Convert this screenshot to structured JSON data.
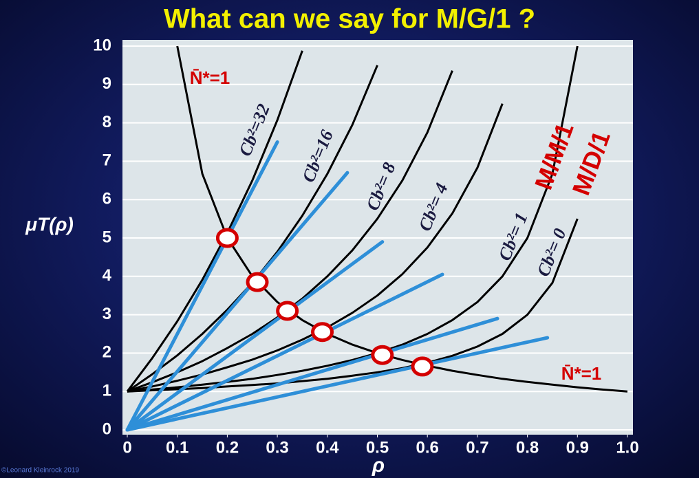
{
  "chart_data": {
    "type": "line",
    "title": "What can we say for M/G/1 ?",
    "x_label": "ρ",
    "y_label": "μT(ρ)",
    "credit": "©Leonard Kleinrock 2019",
    "xlim": [
      0,
      1
    ],
    "ylim": [
      0,
      10
    ],
    "xticks": [
      0,
      0.1,
      0.2,
      0.3,
      0.4,
      0.5,
      0.6,
      0.7,
      0.8,
      0.9,
      {
        "value": 1,
        "label": "1.0"
      }
    ],
    "yticks": [
      0,
      1,
      2,
      3,
      4,
      5,
      6,
      7,
      8,
      9,
      10
    ],
    "grid": true,
    "x": [
      0,
      0.05,
      0.1,
      0.15,
      0.2,
      0.25,
      0.3,
      0.35,
      0.4,
      0.45,
      0.5,
      0.55,
      0.6,
      0.65,
      0.7,
      0.75,
      0.8,
      0.85,
      0.9,
      0.95,
      1
    ],
    "series": [
      {
        "name": "Cb²=32",
        "color": "#000000",
        "values": [
          1,
          1.87,
          2.83,
          3.91,
          5.13,
          6.5,
          8.07,
          9.88,
          null,
          null,
          null,
          null,
          null,
          null,
          null,
          null,
          null,
          null,
          null,
          null,
          null
        ]
      },
      {
        "name": "Cb²=16",
        "color": "#000000",
        "values": [
          1,
          1.45,
          1.94,
          2.5,
          3.13,
          3.83,
          4.64,
          5.58,
          6.67,
          7.95,
          9.5,
          null,
          null,
          null,
          null,
          null,
          null,
          null,
          null,
          null,
          null
        ]
      },
      {
        "name": "Cb²= 8",
        "color": "#000000",
        "values": [
          1,
          1.24,
          1.5,
          1.79,
          2.13,
          2.5,
          2.93,
          3.42,
          4,
          4.68,
          5.5,
          6.5,
          7.75,
          9.36,
          null,
          null,
          null,
          null,
          null,
          null,
          null
        ]
      },
      {
        "name": "Cb²= 4",
        "color": "#000000",
        "values": [
          1,
          1.13,
          1.28,
          1.44,
          1.63,
          1.83,
          2.07,
          2.35,
          2.67,
          3.05,
          3.5,
          4.06,
          4.75,
          5.64,
          6.83,
          8.5,
          null,
          null,
          null,
          null,
          null
        ]
      },
      {
        "name": "Cb²= 1",
        "color": "#000000",
        "values": [
          1,
          1.05,
          1.11,
          1.18,
          1.25,
          1.33,
          1.43,
          1.54,
          1.67,
          1.82,
          2,
          2.22,
          2.5,
          2.86,
          3.33,
          4,
          5,
          6.67,
          10,
          null,
          null
        ]
      },
      {
        "name": "Cb²= 0",
        "color": "#000000",
        "values": [
          1,
          1.03,
          1.06,
          1.09,
          1.13,
          1.17,
          1.21,
          1.27,
          1.33,
          1.41,
          1.5,
          1.61,
          1.75,
          1.93,
          2.17,
          2.5,
          3,
          3.83,
          5.5,
          null,
          null
        ]
      },
      {
        "name": "N̄*=1",
        "color": "#000000",
        "values": [
          null,
          null,
          10,
          6.67,
          5,
          4,
          3.33,
          2.86,
          2.5,
          2.22,
          2,
          1.82,
          1.67,
          1.54,
          1.43,
          1.33,
          1.25,
          1.18,
          1.11,
          1.05,
          1
        ]
      }
    ],
    "rays": {
      "color": "#2e8fd8",
      "lines": [
        {
          "x": [
            0,
            0.3
          ],
          "values": [
            0,
            7.5
          ]
        },
        {
          "x": [
            0,
            0.44
          ],
          "values": [
            0,
            6.7
          ]
        },
        {
          "x": [
            0,
            0.51
          ],
          "values": [
            0,
            4.9
          ]
        },
        {
          "x": [
            0,
            0.63
          ],
          "values": [
            0,
            4.05
          ]
        },
        {
          "x": [
            0,
            0.74
          ],
          "values": [
            0,
            2.9
          ]
        },
        {
          "x": [
            0,
            0.84
          ],
          "values": [
            0,
            2.4
          ]
        }
      ]
    },
    "points": {
      "color": "#d40000",
      "x": [
        0.2,
        0.26,
        0.32,
        0.39,
        0.51,
        0.59
      ],
      "values": [
        5,
        3.85,
        3.1,
        2.55,
        1.95,
        1.65
      ]
    },
    "annotations": [
      "M/M/1",
      "M/D/1"
    ]
  }
}
